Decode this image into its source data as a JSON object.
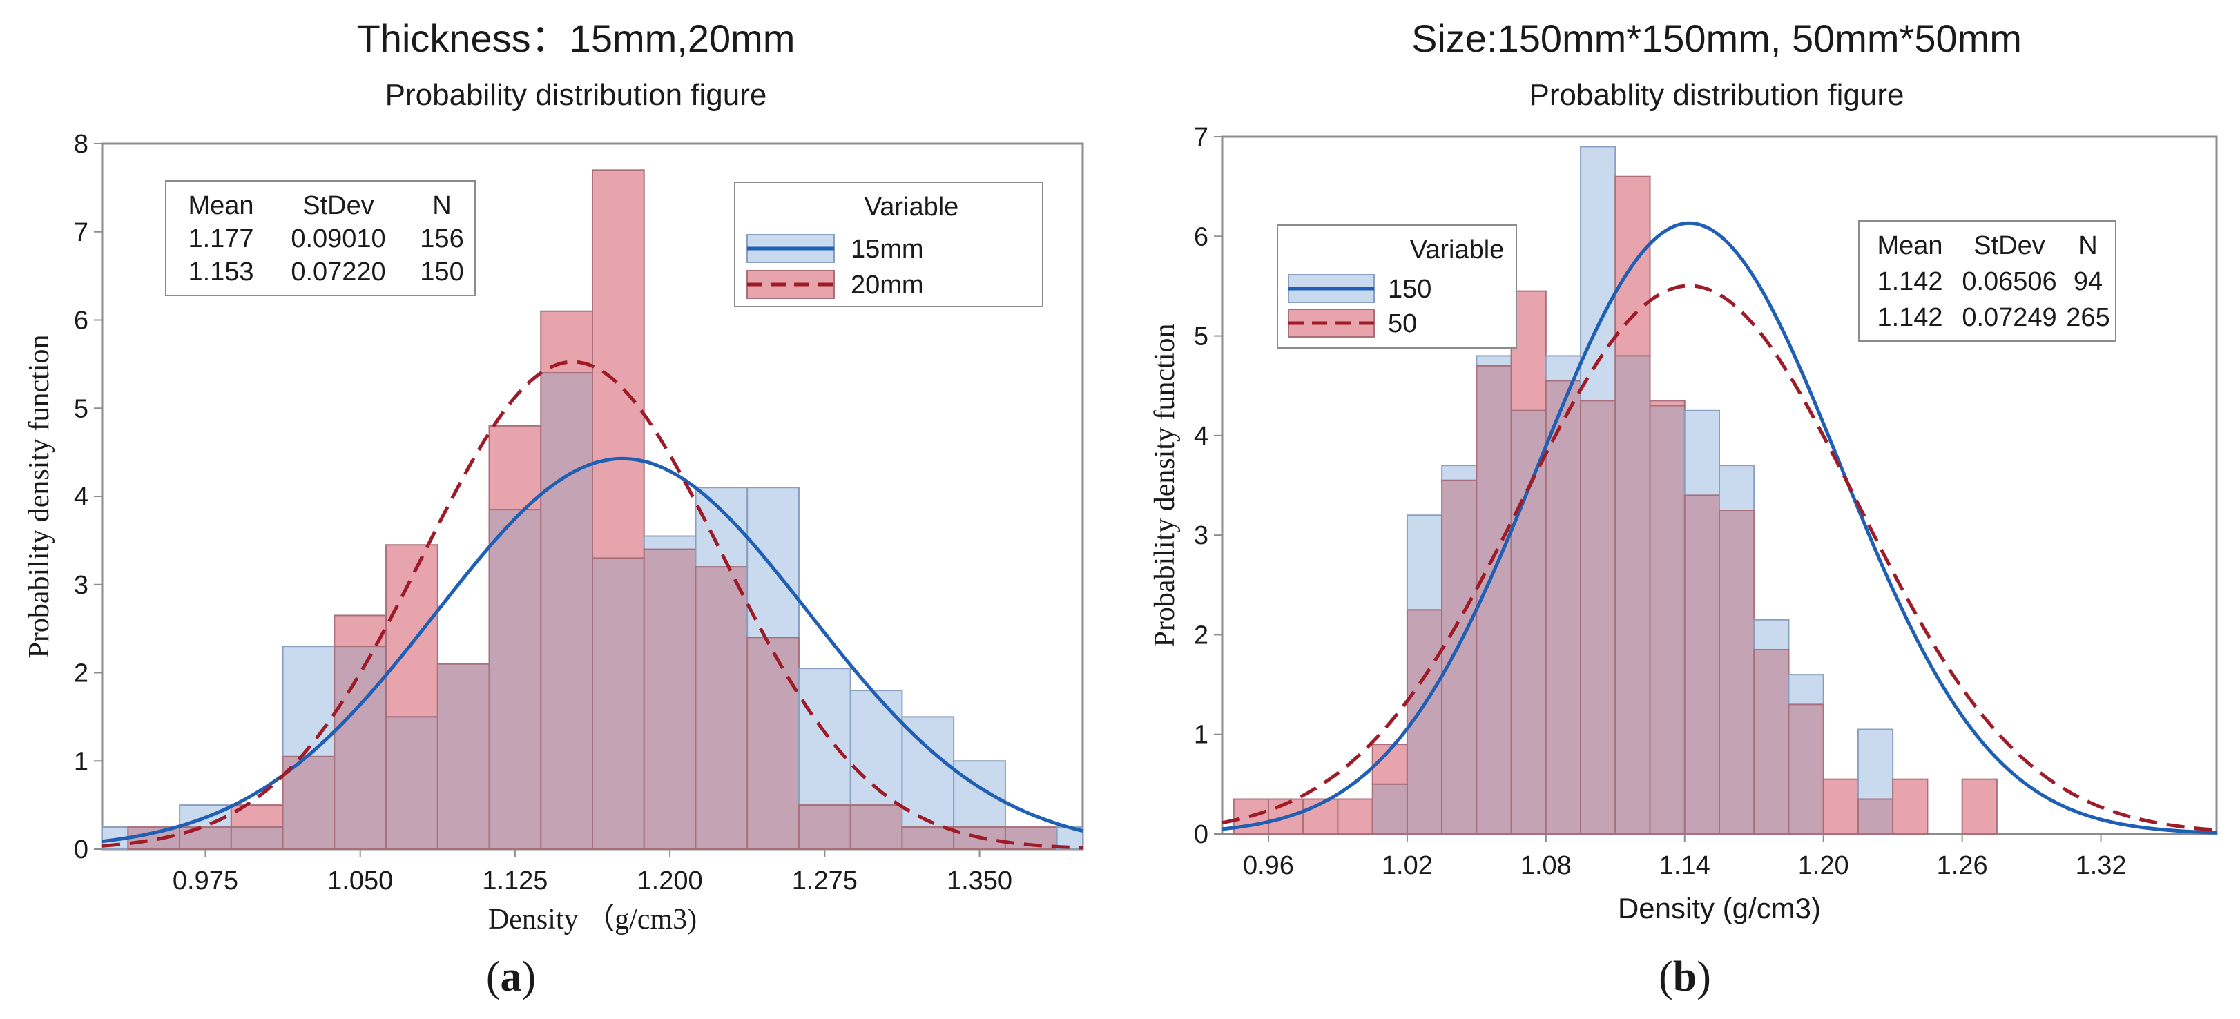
{
  "colors": {
    "blue_fill": "#c9d9ee",
    "blue_stroke": "#8a9fbf",
    "blue_line": "#1f5fb4",
    "red_fill": "#e7a4ac",
    "red_stroke": "#a8707a",
    "red_line": "#9e1c28",
    "overlap_fill": "#c4a4b4",
    "axes": "#8c8c8c"
  },
  "captions": {
    "a_paren_open": "(",
    "a_letter": "a",
    "a_paren_close": ")",
    "b_paren_open": "(",
    "b_letter": "b",
    "b_paren_close": ")"
  },
  "chart_data": [
    {
      "id": "a",
      "type": "bar",
      "title": "Thickness：15mm,20mm",
      "subtitle": "Probability distribution figure",
      "xlabel": "Density （g/cm3)",
      "ylabel": "Probability density function",
      "xlim": [
        0.925,
        1.4
      ],
      "ylim": [
        0,
        8
      ],
      "yticks": [
        0,
        1,
        2,
        3,
        4,
        5,
        6,
        7,
        8
      ],
      "ytick_labels": [
        "0",
        "1",
        "2",
        "3",
        "4",
        "5",
        "6",
        "7",
        "8"
      ],
      "xticks": [
        0.975,
        1.05,
        1.125,
        1.2,
        1.275,
        1.35
      ],
      "xtick_labels": [
        "0.975",
        "1.050",
        "1.125",
        "1.200",
        "1.275",
        "1.350"
      ],
      "bin_start": 0.9125,
      "bin_width": 0.025,
      "stats_table": {
        "headers": [
          "Mean",
          "StDev",
          "N"
        ],
        "rows": [
          [
            "1.177",
            "0.09010",
            "156"
          ],
          [
            "1.153",
            "0.07220",
            "150"
          ]
        ]
      },
      "legend": {
        "title": "Variable",
        "position": "top-right",
        "entries": [
          "15mm",
          "20mm"
        ]
      },
      "series": [
        {
          "name": "15mm",
          "style": "solid",
          "mean": 1.177,
          "sd": 0.0901,
          "hist": [
            0.25,
            0.25,
            0.5,
            0.25,
            2.3,
            2.3,
            1.5,
            2.1,
            3.85,
            5.4,
            3.3,
            3.55,
            4.1,
            4.1,
            2.05,
            1.8,
            1.5,
            1.0,
            0.25,
            0.25
          ]
        },
        {
          "name": "20mm",
          "style": "dashed",
          "mean": 1.153,
          "sd": 0.0722,
          "hist": [
            0.0,
            0.25,
            0.25,
            0.5,
            1.05,
            2.65,
            3.45,
            2.1,
            4.8,
            6.1,
            7.7,
            3.4,
            3.2,
            2.4,
            0.5,
            0.5,
            0.25,
            0.25,
            0.25,
            0.0
          ]
        }
      ]
    },
    {
      "id": "b",
      "type": "bar",
      "title": "Size:150mm*150mm, 50mm*50mm",
      "subtitle": "Probablity distribution figure",
      "xlabel": "Density (g/cm3)",
      "ylabel": "Probability density function",
      "xlim": [
        0.94,
        1.37
      ],
      "ylim": [
        0,
        7
      ],
      "yticks": [
        0,
        1,
        2,
        3,
        4,
        5,
        6,
        7
      ],
      "ytick_labels": [
        "0",
        "1",
        "2",
        "3",
        "4",
        "5",
        "6",
        "7"
      ],
      "xticks": [
        0.96,
        1.02,
        1.08,
        1.14,
        1.2,
        1.26,
        1.32
      ],
      "xtick_labels": [
        "0.96",
        "1.02",
        "1.08",
        "1.14",
        "1.20",
        "1.26",
        "1.32"
      ],
      "bin_start": 0.945,
      "bin_width": 0.015,
      "stats_table": {
        "headers": [
          "Mean",
          "StDev",
          "N"
        ],
        "rows": [
          [
            "1.142",
            "0.06506",
            "94"
          ],
          [
            "1.142",
            "0.07249",
            "265"
          ]
        ]
      },
      "legend": {
        "title": "Variable",
        "position": "top-left",
        "entries": [
          "150",
          "50"
        ]
      },
      "series": [
        {
          "name": "150",
          "style": "solid",
          "mean": 1.142,
          "sd": 0.06506,
          "hist": [
            0.0,
            0.0,
            0.0,
            0.0,
            0.5,
            3.2,
            3.7,
            4.8,
            4.25,
            4.8,
            6.9,
            4.8,
            4.3,
            4.25,
            3.7,
            2.15,
            1.6,
            0.0,
            1.05,
            0.0,
            0.0,
            0.0,
            0.0,
            0.0,
            0.0,
            0.0,
            0.0,
            0.0,
            0.0
          ]
        },
        {
          "name": "50",
          "style": "dashed",
          "mean": 1.142,
          "sd": 0.07249,
          "hist": [
            0.35,
            0.35,
            0.35,
            0.35,
            0.9,
            2.25,
            3.55,
            4.7,
            5.45,
            4.55,
            4.35,
            6.6,
            4.35,
            3.4,
            3.25,
            1.85,
            1.3,
            0.55,
            0.35,
            0.55,
            0.0,
            0.55,
            0.0,
            0.0,
            0.0,
            0.0,
            0.0,
            0.0,
            0.0
          ]
        }
      ]
    }
  ]
}
